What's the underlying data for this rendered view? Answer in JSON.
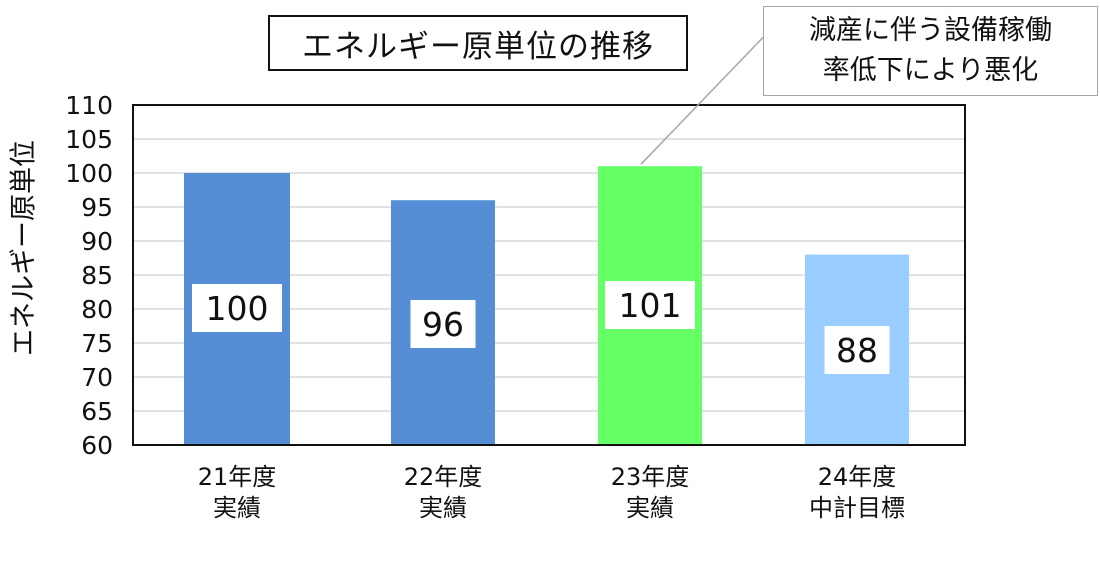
{
  "chart_data": {
    "type": "bar",
    "title": "エネルギー原単位の推移",
    "ylabel": "エネルギー原単位",
    "xlabel": "",
    "ylim": [
      60,
      110
    ],
    "ytick_step": 5,
    "yticks": [
      "60",
      "65",
      "70",
      "75",
      "80",
      "85",
      "90",
      "95",
      "100",
      "105",
      "110"
    ],
    "grid": true,
    "categories": [
      {
        "line1": "21年度",
        "line2": "実績"
      },
      {
        "line1": "22年度",
        "line2": "実績"
      },
      {
        "line1": "23年度",
        "line2": "実績"
      },
      {
        "line1": "24年度",
        "line2": "中計目標"
      }
    ],
    "values": [
      100,
      96,
      101,
      88
    ],
    "data_labels": [
      "100",
      "96",
      "101",
      "88"
    ],
    "bar_colors": [
      "#558ed5",
      "#558ed5",
      "#66ff66",
      "#99ccff"
    ],
    "annotation": {
      "line1": "減産に伴う設備稼働",
      "line2": "率低下により悪化",
      "target_category_index": 2
    }
  }
}
